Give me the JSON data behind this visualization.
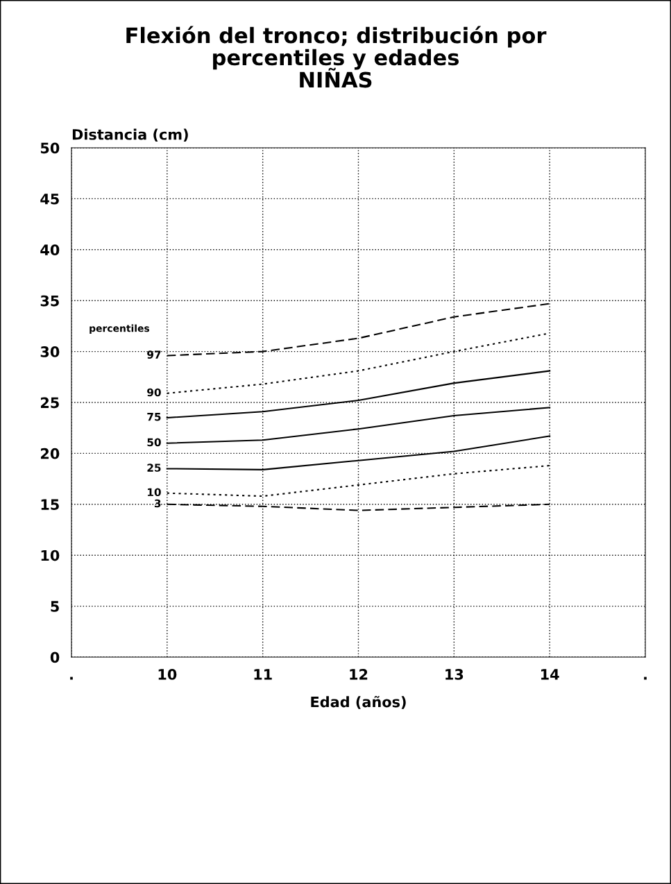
{
  "chart_data": {
    "type": "line",
    "title": "Flexión del tronco; distribución por\npercentiles y edades\nNIÑAS",
    "ylabel": "Distancia (cm)",
    "xlabel": "Edad (años)",
    "legend_title": "percentiles",
    "x": [
      10,
      11,
      12,
      13,
      14
    ],
    "series": [
      {
        "name": "97",
        "color": "#000000",
        "line_style": "dashed",
        "values": [
          29.6,
          30.0,
          31.3,
          33.4,
          34.7
        ]
      },
      {
        "name": "90",
        "color": "#000000",
        "line_style": "dotted",
        "values": [
          25.9,
          26.8,
          28.1,
          30.0,
          31.8
        ]
      },
      {
        "name": "75",
        "color": "#000000",
        "line_style": "solid",
        "values": [
          23.5,
          24.1,
          25.2,
          26.9,
          28.1
        ]
      },
      {
        "name": "50",
        "color": "#000000",
        "line_style": "solid",
        "values": [
          21.0,
          21.3,
          22.4,
          23.7,
          24.5
        ]
      },
      {
        "name": "25",
        "color": "#000000",
        "line_style": "solid",
        "values": [
          18.5,
          18.4,
          19.3,
          20.2,
          21.7
        ]
      },
      {
        "name": "10",
        "color": "#000000",
        "line_style": "dotted",
        "values": [
          16.1,
          15.8,
          16.9,
          18.0,
          18.8
        ]
      },
      {
        "name": "3",
        "color": "#000000",
        "line_style": "dashed",
        "values": [
          15.0,
          14.8,
          14.4,
          14.7,
          15.0
        ]
      }
    ],
    "xlim": [
      9,
      15
    ],
    "xticks": [
      {
        "value": 9,
        "label": "."
      },
      10,
      11,
      12,
      13,
      14,
      {
        "value": 15,
        "label": "."
      }
    ],
    "ylim": [
      0,
      50
    ],
    "yticks": [
      0,
      5,
      10,
      15,
      20,
      25,
      30,
      35,
      40,
      45,
      50
    ],
    "grid": true,
    "marker": "none"
  }
}
